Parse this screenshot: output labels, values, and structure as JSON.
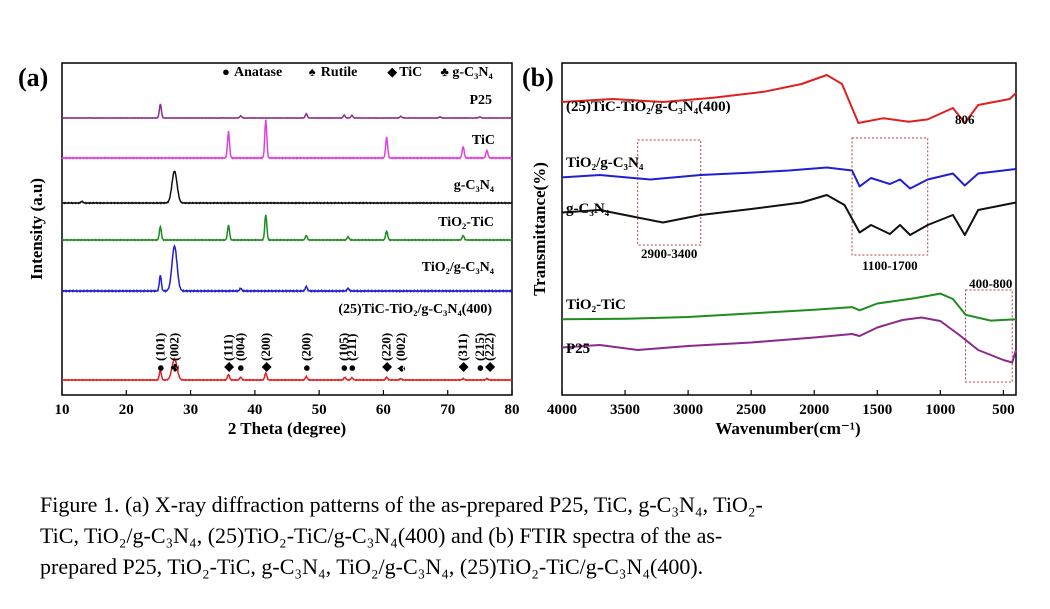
{
  "figure": {
    "caption_lines": [
      "Figure 1. (a) X-ray diffraction patterns of the as-prepared P25, TiC, g-C₃N₄, TiO₂-",
      "TiC, TiO₂/g-C₃N₄, (25)TiO₂-TiC/g-C₃N₄(400) and (b) FTIR spectra of the as-",
      "prepared P25, TiO₂-TiC, g-C₃N₄, TiO₂/g-C₃N₄, (25)TiO₂-TiC/g-C₃N₄(400)."
    ]
  },
  "chart_data": [
    {
      "type": "line",
      "panel_label": "(a)",
      "xlabel": "2 Theta (degree)",
      "ylabel": "Intensity (a.u)",
      "xlim": [
        10,
        80
      ],
      "xticks": [
        10,
        20,
        30,
        40,
        50,
        60,
        70,
        80
      ],
      "legend": [
        {
          "symbol": "●",
          "label": "Anatase"
        },
        {
          "symbol": "♠",
          "label": "Rutile"
        },
        {
          "symbol": "◆",
          "label": "TiC"
        },
        {
          "symbol": "♣",
          "label": "g-C₃N₄"
        }
      ],
      "series": [
        {
          "name": "P25",
          "color": "#8b2a8b",
          "peaks": [
            [
              25.3,
              1.0
            ],
            [
              37.8,
              0.15
            ],
            [
              48.0,
              0.3
            ],
            [
              53.9,
              0.2
            ],
            [
              55.1,
              0.18
            ],
            [
              62.7,
              0.12
            ],
            [
              68.8,
              0.08
            ],
            [
              75.0,
              0.08
            ]
          ]
        },
        {
          "name": "TiC",
          "color": "#e040e0",
          "peaks": [
            [
              35.9,
              0.7
            ],
            [
              41.7,
              1.0
            ],
            [
              60.5,
              0.55
            ],
            [
              72.4,
              0.3
            ],
            [
              76.1,
              0.2
            ]
          ]
        },
        {
          "name": "g-C₃N₄",
          "color": "#111111",
          "peaks": [
            [
              27.5,
              1.0
            ],
            [
              13.1,
              0.05
            ]
          ]
        },
        {
          "name": "TiO₂-TiC",
          "color": "#1e8c1e",
          "peaks": [
            [
              25.3,
              0.45
            ],
            [
              35.9,
              0.5
            ],
            [
              41.7,
              0.85
            ],
            [
              48.0,
              0.15
            ],
            [
              54.5,
              0.1
            ],
            [
              60.5,
              0.3
            ],
            [
              72.4,
              0.15
            ]
          ]
        },
        {
          "name": "TiO₂/g-C₃N₄",
          "color": "#2020d0",
          "peaks": [
            [
              25.3,
              0.35
            ],
            [
              27.5,
              1.0
            ],
            [
              37.8,
              0.06
            ],
            [
              48.0,
              0.1
            ],
            [
              54.5,
              0.06
            ]
          ]
        },
        {
          "name": "(25)TiC-TiO₂/g-C₃N₄(400)",
          "color": "#e02020",
          "peaks": [
            [
              25.3,
              0.35
            ],
            [
              27.5,
              0.75
            ],
            [
              35.9,
              0.2
            ],
            [
              37.8,
              0.1
            ],
            [
              41.7,
              0.25
            ],
            [
              48.0,
              0.12
            ],
            [
              54.0,
              0.1
            ],
            [
              55.1,
              0.08
            ],
            [
              60.5,
              0.1
            ],
            [
              62.7,
              0.05
            ],
            [
              72.4,
              0.05
            ],
            [
              76.1,
              0.05
            ]
          ]
        }
      ],
      "annotations": [
        {
          "sym": "●",
          "text": "(101)",
          "x": 25.3
        },
        {
          "sym": "♣",
          "text": "(002)",
          "x": 27.5
        },
        {
          "sym": "◆",
          "text": "(111)",
          "x": 35.9
        },
        {
          "sym": "●",
          "text": "(004)",
          "x": 37.8
        },
        {
          "sym": "◆",
          "text": "(200)",
          "x": 41.7
        },
        {
          "sym": "●",
          "text": "(200)",
          "x": 48.0
        },
        {
          "sym": "●",
          "text": "(105)",
          "x": 53.9
        },
        {
          "sym": "●",
          "text": "(211)",
          "x": 55.1
        },
        {
          "sym": "◆",
          "text": "(220)",
          "x": 60.5
        },
        {
          "sym": "♠",
          "text": "(002)",
          "x": 62.7
        },
        {
          "sym": "◆",
          "text": "(311)",
          "x": 72.4
        },
        {
          "sym": "●",
          "text": "(215)",
          "x": 75.0
        },
        {
          "sym": "◆",
          "text": "(222)",
          "x": 76.5
        }
      ]
    },
    {
      "type": "line",
      "panel_label": "(b)",
      "xlabel": "Wavenumber(cm⁻¹)",
      "ylabel": "Transmittance(%)",
      "xlim": [
        4000,
        400
      ],
      "xticks": [
        4000,
        3500,
        3000,
        2500,
        2000,
        1500,
        1000,
        500
      ],
      "series": [
        {
          "name": "(25)TiC-TiO₂/g-C₃N₄(400)",
          "color": "#e02020",
          "points": [
            [
              4000,
              0.55
            ],
            [
              3600,
              0.6
            ],
            [
              3200,
              0.55
            ],
            [
              2800,
              0.62
            ],
            [
              2400,
              0.72
            ],
            [
              2100,
              0.85
            ],
            [
              1900,
              1.0
            ],
            [
              1780,
              0.85
            ],
            [
              1650,
              0.2
            ],
            [
              1450,
              0.28
            ],
            [
              1250,
              0.22
            ],
            [
              1100,
              0.26
            ],
            [
              900,
              0.45
            ],
            [
              806,
              0.2
            ],
            [
              700,
              0.5
            ],
            [
              450,
              0.6
            ],
            [
              400,
              0.7
            ]
          ]
        },
        {
          "name": "TiO₂/g-C₃N₄",
          "color": "#2020d0",
          "points": [
            [
              4000,
              0.42
            ],
            [
              3700,
              0.5
            ],
            [
              3300,
              0.35
            ],
            [
              2900,
              0.5
            ],
            [
              2500,
              0.58
            ],
            [
              2200,
              0.65
            ],
            [
              1900,
              0.75
            ],
            [
              1700,
              0.65
            ],
            [
              1640,
              0.12
            ],
            [
              1550,
              0.4
            ],
            [
              1400,
              0.2
            ],
            [
              1320,
              0.35
            ],
            [
              1240,
              0.05
            ],
            [
              1100,
              0.35
            ],
            [
              900,
              0.55
            ],
            [
              806,
              0.15
            ],
            [
              700,
              0.55
            ],
            [
              400,
              0.7
            ]
          ]
        },
        {
          "name": "g-C₃N₄",
          "color": "#111111",
          "points": [
            [
              4000,
              0.55
            ],
            [
              3700,
              0.6
            ],
            [
              3200,
              0.35
            ],
            [
              2900,
              0.5
            ],
            [
              2500,
              0.62
            ],
            [
              2100,
              0.75
            ],
            [
              1900,
              0.9
            ],
            [
              1760,
              0.7
            ],
            [
              1640,
              0.15
            ],
            [
              1550,
              0.3
            ],
            [
              1400,
              0.12
            ],
            [
              1320,
              0.3
            ],
            [
              1240,
              0.1
            ],
            [
              1100,
              0.3
            ],
            [
              900,
              0.5
            ],
            [
              806,
              0.1
            ],
            [
              700,
              0.6
            ],
            [
              400,
              0.75
            ]
          ]
        },
        {
          "name": "TiO₂-TiC",
          "color": "#1e8c1e",
          "points": [
            [
              4000,
              0.35
            ],
            [
              3500,
              0.36
            ],
            [
              3000,
              0.4
            ],
            [
              2500,
              0.48
            ],
            [
              2000,
              0.56
            ],
            [
              1700,
              0.62
            ],
            [
              1640,
              0.55
            ],
            [
              1500,
              0.7
            ],
            [
              1200,
              0.82
            ],
            [
              1000,
              0.92
            ],
            [
              900,
              0.8
            ],
            [
              800,
              0.45
            ],
            [
              600,
              0.32
            ],
            [
              400,
              0.35
            ]
          ]
        },
        {
          "name": "P25",
          "color": "#8b2a8b",
          "points": [
            [
              4000,
              0.35
            ],
            [
              3700,
              0.4
            ],
            [
              3400,
              0.3
            ],
            [
              3000,
              0.38
            ],
            [
              2500,
              0.45
            ],
            [
              2000,
              0.55
            ],
            [
              1700,
              0.62
            ],
            [
              1640,
              0.58
            ],
            [
              1500,
              0.75
            ],
            [
              1300,
              0.9
            ],
            [
              1150,
              0.95
            ],
            [
              1000,
              0.88
            ],
            [
              850,
              0.6
            ],
            [
              700,
              0.3
            ],
            [
              500,
              0.1
            ],
            [
              430,
              0.05
            ],
            [
              400,
              0.3
            ]
          ]
        }
      ],
      "annotations": [
        {
          "text": "806",
          "x": 806
        },
        {
          "text": "2900-3400",
          "x": 3150
        },
        {
          "text": "1100-1700",
          "x": 1400
        },
        {
          "text": "400-800",
          "x": 600
        }
      ],
      "regions": [
        [
          3400,
          2900
        ],
        [
          1700,
          1100
        ],
        [
          800,
          430
        ]
      ]
    }
  ]
}
